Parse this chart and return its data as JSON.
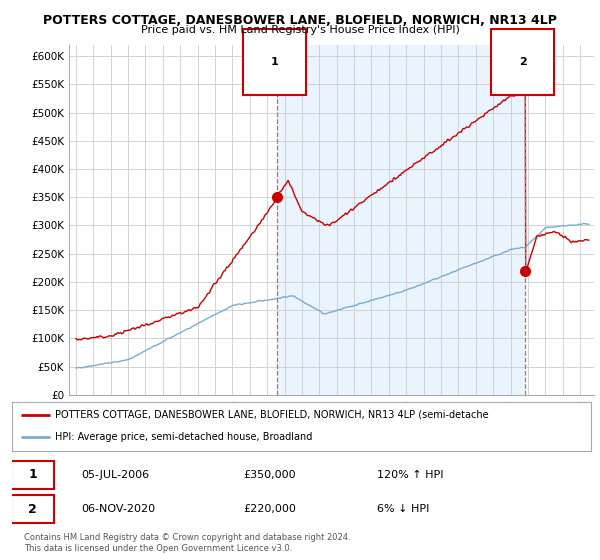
{
  "title": "POTTERS COTTAGE, DANESBOWER LANE, BLOFIELD, NORWICH, NR13 4LP",
  "subtitle": "Price paid vs. HM Land Registry's House Price Index (HPI)",
  "legend_line1": "POTTERS COTTAGE, DANESBOWER LANE, BLOFIELD, NORWICH, NR13 4LP (semi-detache",
  "legend_line2": "HPI: Average price, semi-detached house, Broadland",
  "transaction1_date": "05-JUL-2006",
  "transaction1_price": "£350,000",
  "transaction1_hpi": "120% ↑ HPI",
  "transaction2_date": "06-NOV-2020",
  "transaction2_price": "£220,000",
  "transaction2_hpi": "6% ↓ HPI",
  "footer": "Contains HM Land Registry data © Crown copyright and database right 2024.\nThis data is licensed under the Open Government Licence v3.0.",
  "ylim": [
    0,
    620000
  ],
  "yticks": [
    0,
    50000,
    100000,
    150000,
    200000,
    250000,
    300000,
    350000,
    400000,
    450000,
    500000,
    550000,
    600000
  ],
  "ytick_labels": [
    "£0",
    "£50K",
    "£100K",
    "£150K",
    "£200K",
    "£250K",
    "£300K",
    "£350K",
    "£400K",
    "£450K",
    "£500K",
    "£550K",
    "£600K"
  ],
  "red_color": "#cc0000",
  "blue_color": "#7aadcf",
  "dashed_color": "#cc6666",
  "grid_color": "#cccccc",
  "bg_color": "#ffffff",
  "shading_color": "#ddeeff",
  "transaction1_x": 2006.58,
  "transaction1_y": 350000,
  "transaction2_x": 2020.85,
  "transaction2_y": 220000,
  "xlim_left": 1994.6,
  "xlim_right": 2024.8
}
